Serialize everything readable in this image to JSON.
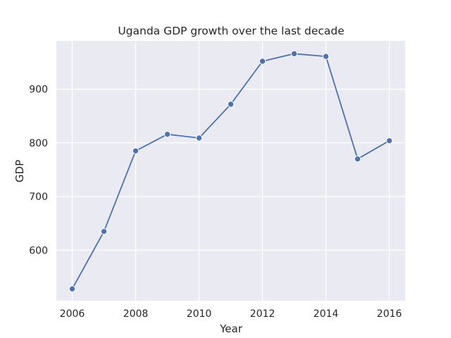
{
  "chart_data": {
    "type": "line",
    "title": "Uganda GDP growth over the last decade",
    "xlabel": "Year",
    "ylabel": "GDP",
    "x": [
      2006,
      2007,
      2008,
      2009,
      2010,
      2011,
      2012,
      2013,
      2014,
      2015,
      2016
    ],
    "series": [
      {
        "values": [
          528,
          635,
          785,
          816,
          809,
          872,
          952,
          966,
          961,
          770,
          804
        ],
        "color": "#4c72b0"
      }
    ],
    "xlim": [
      2005.5,
      2016.5
    ],
    "ylim": [
      506,
      990
    ],
    "xticks": [
      2006,
      2008,
      2010,
      2012,
      2014,
      2016
    ],
    "yticks": [
      600,
      700,
      800,
      900
    ],
    "grid": true,
    "marker": "circle"
  }
}
